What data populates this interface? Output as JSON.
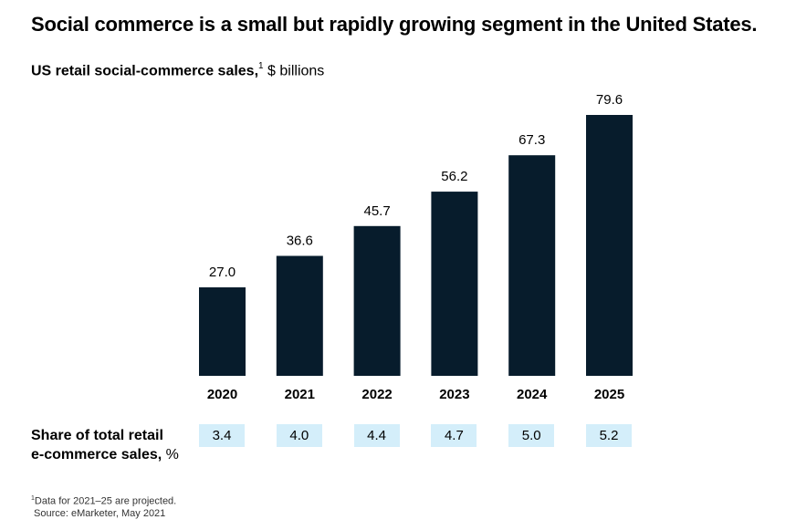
{
  "title": "Social commerce is a small but rapidly growing segment in the United States.",
  "subtitle": {
    "bold": "US retail social-commerce sales,",
    "footnote_mark": "1",
    "unit": " $ billions"
  },
  "colors": {
    "bar": "#071c2c",
    "share_cell": "#d4eefa"
  },
  "chart_data": {
    "type": "bar",
    "title": "Social commerce is a small but rapidly growing segment in the United States.",
    "ylabel": "US retail social-commerce sales, $ billions",
    "categories": [
      "2020",
      "2021",
      "2022",
      "2023",
      "2024",
      "2025"
    ],
    "values": [
      27.0,
      36.6,
      45.7,
      56.2,
      67.3,
      79.6
    ],
    "value_labels": [
      "27.0",
      "36.6",
      "45.7",
      "56.2",
      "67.3",
      "79.6"
    ],
    "ylim": [
      0,
      80
    ],
    "grid": false
  },
  "share": {
    "label_bold_line1": "Share of total retail",
    "label_bold_line2": "e-commerce sales,",
    "label_unit": " %",
    "values": [
      "3.4",
      "4.0",
      "4.4",
      "4.7",
      "5.0",
      "5.2"
    ]
  },
  "footnote": {
    "mark": "1",
    "text": "Data for 2021–25 are projected.",
    "source": "Source: eMarketer, May 2021"
  }
}
